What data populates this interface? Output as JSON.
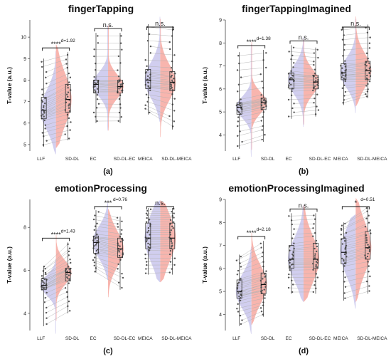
{
  "colors": {
    "left_violin": "#c9c6ec",
    "right_violin": "#f7a8a0",
    "points": "#555555",
    "lines": "#b0b0b0"
  },
  "chart_data": [
    {
      "type": "violin",
      "title": "fingerTapping",
      "panel_label": "(a)",
      "ylabel": "T-value (a.u.)",
      "ylim": [
        4.7,
        10.8
      ],
      "yticks": [
        5,
        6,
        7,
        8,
        9,
        10
      ],
      "groups": [
        {
          "left_label": "LLF",
          "right_label": "SD-DL",
          "left": {
            "min": 4.9,
            "q1": 6.2,
            "median": 6.6,
            "q3": 7.2,
            "max": 9.0
          },
          "right": {
            "min": 5.2,
            "q1": 6.5,
            "median": 7.1,
            "q3": 7.8,
            "max": 9.3
          },
          "sig": "****",
          "d": "d=1.92"
        },
        {
          "left_label": "EC",
          "right_label": "SD-DL-EC",
          "left": {
            "min": 6.0,
            "q1": 7.4,
            "median": 7.8,
            "q3": 8.0,
            "max": 10.2
          },
          "right": {
            "min": 6.0,
            "q1": 7.4,
            "median": 7.7,
            "q3": 8.0,
            "max": 10.2
          },
          "sig": "n.s.",
          "d": ""
        },
        {
          "left_label": "MEICA",
          "right_label": "SD-DL-MEICA",
          "left": {
            "min": 6.4,
            "q1": 7.6,
            "median": 8.0,
            "q3": 8.5,
            "max": 10.6
          },
          "right": {
            "min": 5.7,
            "q1": 7.5,
            "median": 7.9,
            "q3": 8.4,
            "max": 10.5
          },
          "sig": "n.s.",
          "d": ""
        }
      ]
    },
    {
      "type": "violin",
      "title": "fingerTappingImagined",
      "panel_label": "(b)",
      "ylabel": "T-value (a.u.)",
      "ylim": [
        3.3,
        9.0
      ],
      "yticks": [
        4,
        5,
        6,
        7,
        8,
        9
      ],
      "groups": [
        {
          "left_label": "LLF",
          "right_label": "SD-DL",
          "left": {
            "min": 3.4,
            "q1": 4.9,
            "median": 5.2,
            "q3": 5.4,
            "max": 7.6
          },
          "right": {
            "min": 3.7,
            "q1": 5.1,
            "median": 5.4,
            "q3": 5.6,
            "max": 7.7
          },
          "sig": "****",
          "d": "d=1.38"
        },
        {
          "left_label": "EC",
          "right_label": "SD-DL-EC",
          "left": {
            "min": 4.7,
            "q1": 6.0,
            "median": 6.4,
            "q3": 6.7,
            "max": 7.9
          },
          "right": {
            "min": 4.8,
            "q1": 6.0,
            "median": 6.3,
            "q3": 6.6,
            "max": 7.8
          },
          "sig": "n.s.",
          "d": ""
        },
        {
          "left_label": "MEICA",
          "right_label": "SD-DL-MEICA",
          "left": {
            "min": 5.3,
            "q1": 6.4,
            "median": 6.7,
            "q3": 7.1,
            "max": 8.7
          },
          "right": {
            "min": 5.6,
            "q1": 6.4,
            "median": 6.8,
            "q3": 7.2,
            "max": 8.8
          },
          "sig": "n.s.",
          "d": ""
        }
      ]
    },
    {
      "type": "violin",
      "title": "emotionProcessing",
      "panel_label": "(c)",
      "ylabel": "T-value (a.u.)",
      "ylim": [
        3.2,
        9.3
      ],
      "yticks": [
        4,
        6,
        8
      ],
      "groups": [
        {
          "left_label": "LLF",
          "right_label": "SD-DL",
          "left": {
            "min": 3.4,
            "q1": 5.1,
            "median": 5.3,
            "q3": 5.6,
            "max": 6.2
          },
          "right": {
            "min": 4.0,
            "q1": 5.5,
            "median": 5.9,
            "q3": 6.1,
            "max": 7.3
          },
          "sig": "****",
          "d": "d=1.43"
        },
        {
          "left_label": "EC",
          "right_label": "SD-DL-EC",
          "left": {
            "min": 5.9,
            "q1": 6.8,
            "median": 7.3,
            "q3": 7.6,
            "max": 8.8
          },
          "right": {
            "min": 5.1,
            "q1": 6.6,
            "median": 7.0,
            "q3": 7.5,
            "max": 8.5
          },
          "sig": "***",
          "d": "d=0.76"
        },
        {
          "left_label": "MEICA",
          "right_label": "SD-DL-MEICA",
          "left": {
            "min": 5.8,
            "q1": 7.0,
            "median": 7.5,
            "q3": 8.2,
            "max": 8.9
          },
          "right": {
            "min": 5.8,
            "q1": 7.0,
            "median": 7.5,
            "q3": 8.2,
            "max": 8.9
          },
          "sig": "n.s.",
          "d": ""
        }
      ]
    },
    {
      "type": "violin",
      "title": "emotionProcessingImagined",
      "panel_label": "(d)",
      "ylabel": "T-value (a.u.)",
      "ylim": [
        3.3,
        9.0
      ],
      "yticks": [
        4,
        5,
        6,
        7,
        8,
        9
      ],
      "groups": [
        {
          "left_label": "LLF",
          "right_label": "SD-DL",
          "left": {
            "min": 3.5,
            "q1": 4.7,
            "median": 5.0,
            "q3": 5.5,
            "max": 6.6
          },
          "right": {
            "min": 3.9,
            "q1": 4.9,
            "median": 5.3,
            "q3": 5.8,
            "max": 7.2
          },
          "sig": "****",
          "d": "d=2.18"
        },
        {
          "left_label": "EC",
          "right_label": "SD-DL-EC",
          "left": {
            "min": 4.9,
            "q1": 6.0,
            "median": 6.4,
            "q3": 7.0,
            "max": 8.4
          },
          "right": {
            "min": 4.9,
            "q1": 6.0,
            "median": 6.4,
            "q3": 7.1,
            "max": 8.4
          },
          "sig": "n.s.",
          "d": ""
        },
        {
          "left_label": "MEICA",
          "right_label": "SD-DL-MEICA",
          "left": {
            "min": 4.6,
            "q1": 6.2,
            "median": 6.7,
            "q3": 7.3,
            "max": 8.0
          },
          "right": {
            "min": 4.9,
            "q1": 6.4,
            "median": 6.9,
            "q3": 7.6,
            "max": 8.7
          },
          "sig": "*",
          "d": "d=0.51"
        }
      ]
    }
  ]
}
